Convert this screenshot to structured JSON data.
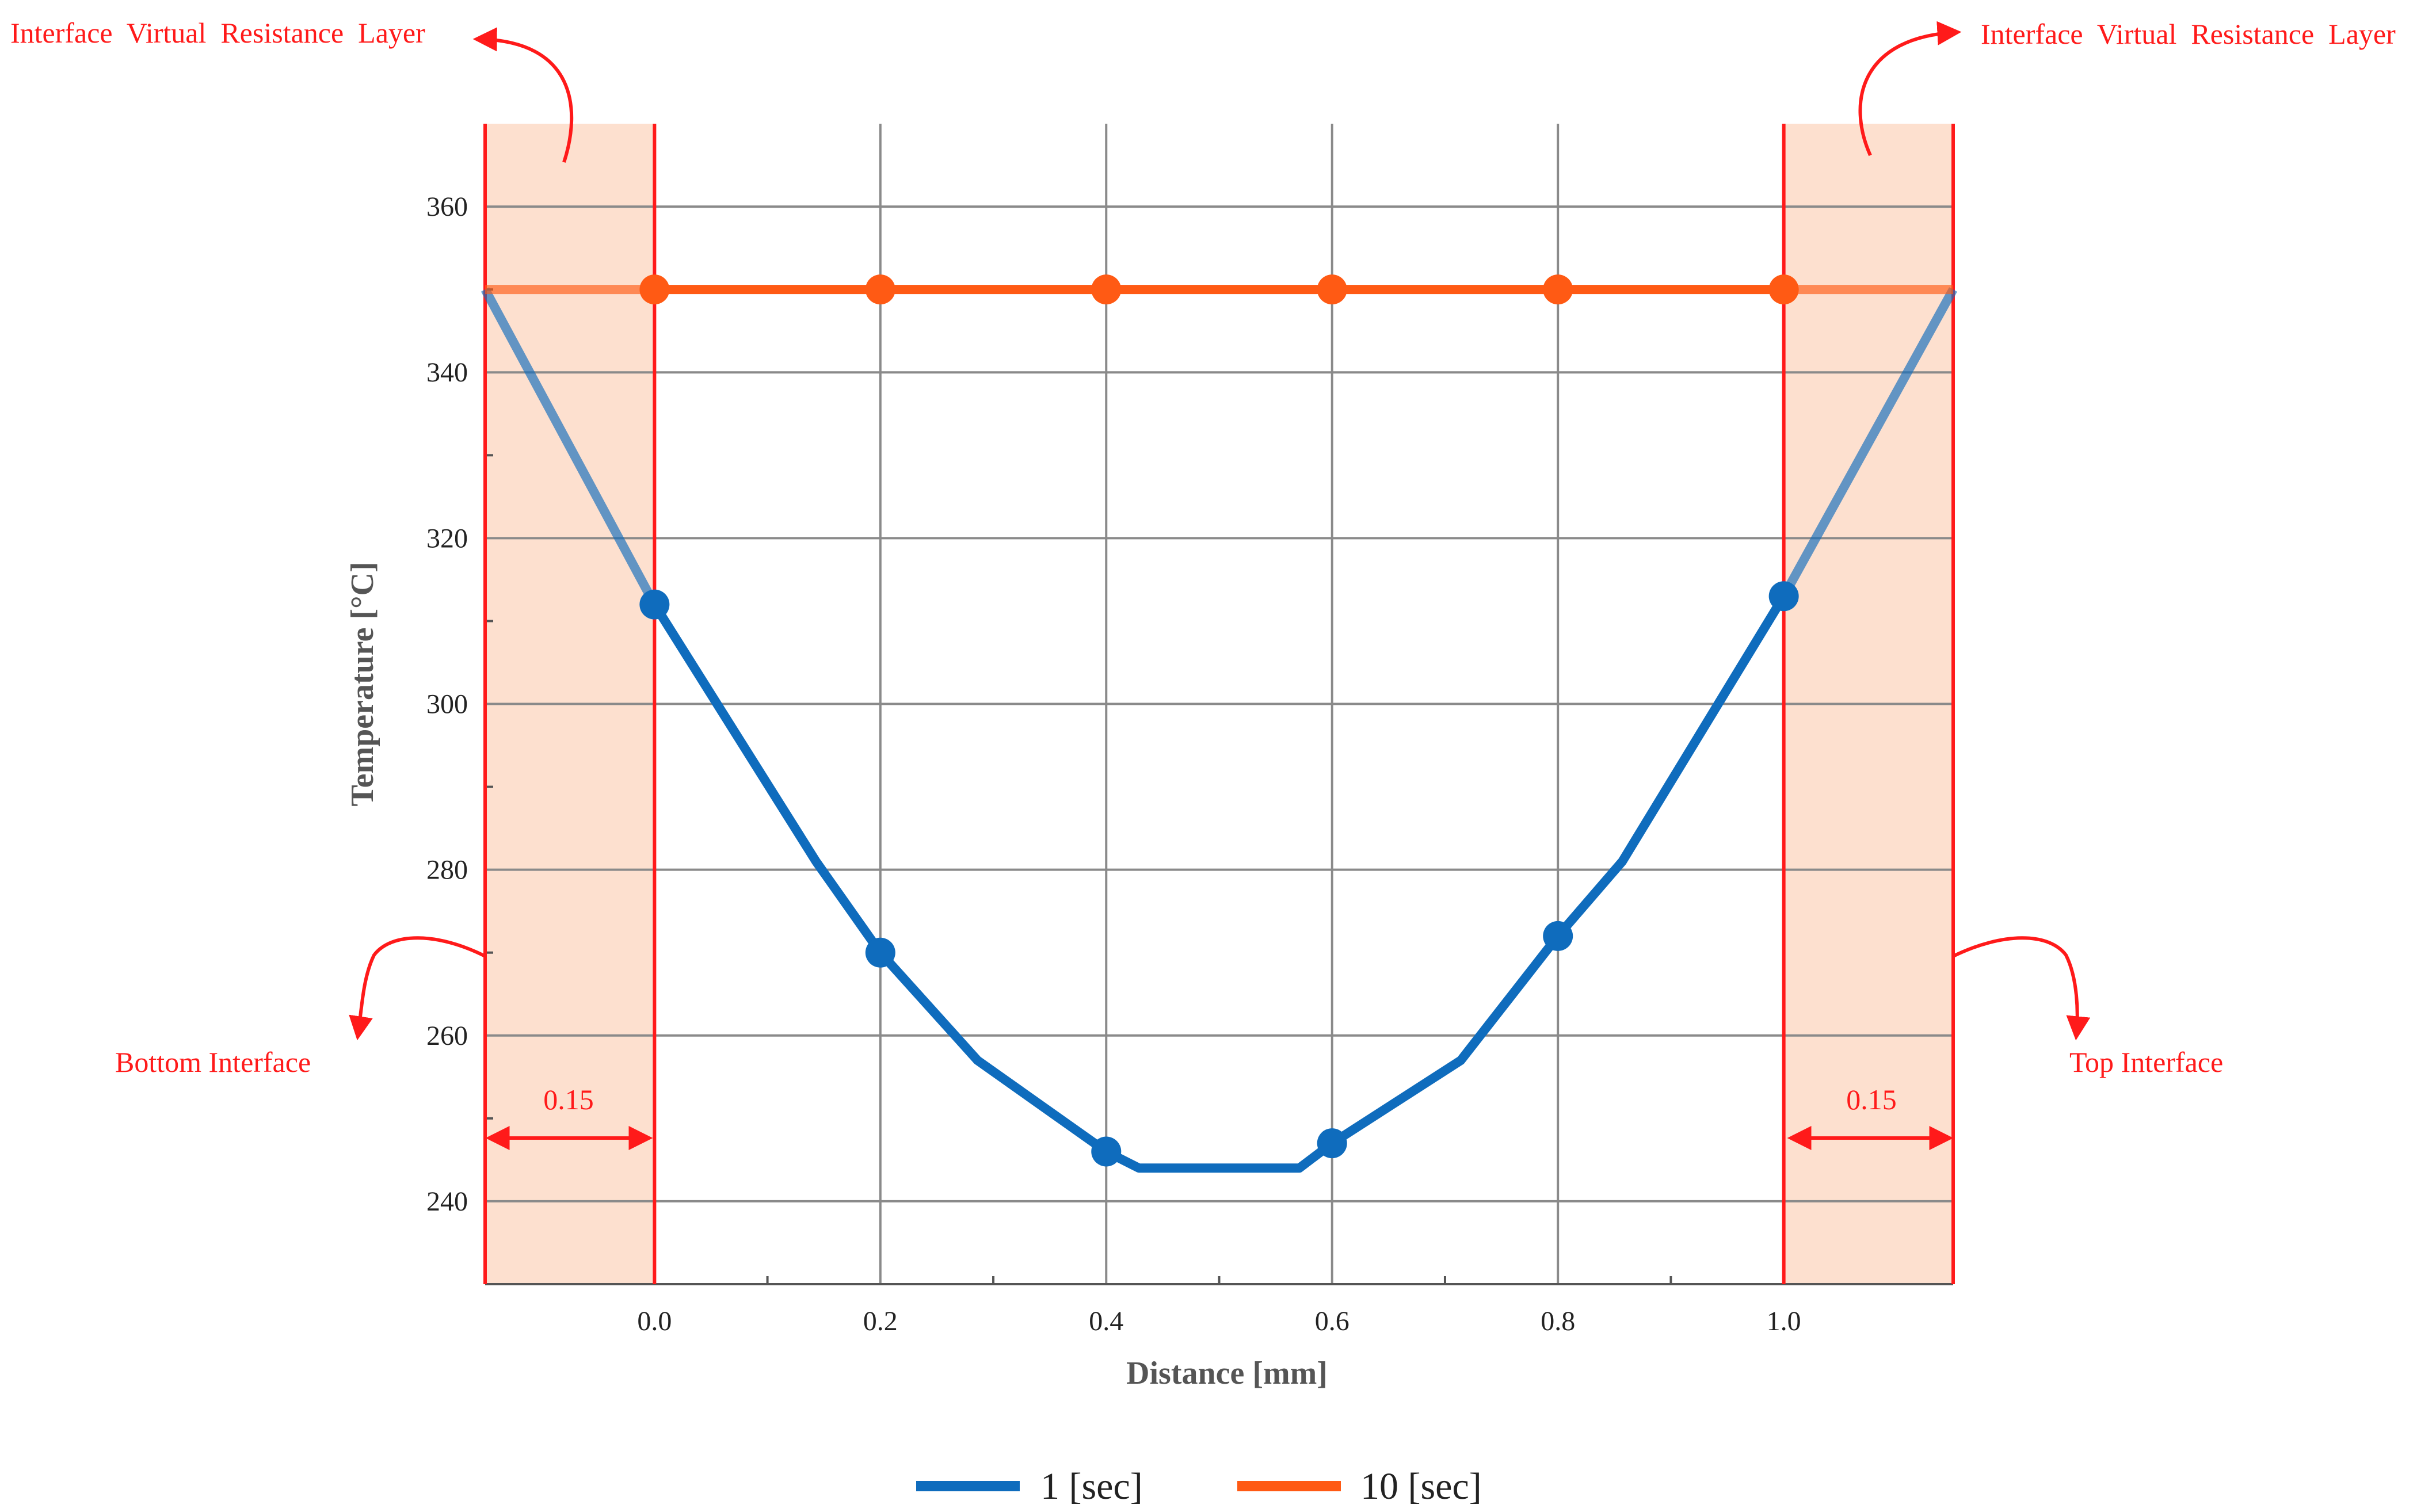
{
  "chart_data": {
    "type": "line",
    "xlabel": "Distance [mm]",
    "ylabel": "Temperature [°C]",
    "xlim": [
      -0.15,
      1.15
    ],
    "ylim": [
      230,
      370
    ],
    "x_ticks": [
      0.0,
      0.2,
      0.4,
      0.6,
      0.8,
      1.0
    ],
    "x_tick_labels": [
      "0.0",
      "0.2",
      "0.4",
      "0.6",
      "0.8",
      "1.0"
    ],
    "y_ticks": [
      240,
      260,
      280,
      300,
      320,
      340,
      360
    ],
    "y_tick_labels": [
      "240",
      "260",
      "280",
      "300",
      "320",
      "340",
      "360"
    ],
    "grid": true,
    "legend_position": "bottom-center",
    "series": [
      {
        "name": "1 [sec]",
        "color": "#0f6cbd",
        "x": [
          -0.15,
          0.0,
          0.143,
          0.2,
          0.286,
          0.4,
          0.429,
          0.571,
          0.6,
          0.714,
          0.8,
          0.857,
          1.0,
          1.15
        ],
        "y": [
          350,
          312,
          281,
          270,
          257,
          246,
          244,
          244,
          247,
          257,
          272,
          281,
          313,
          350
        ],
        "marker_x": [
          0.0,
          0.2,
          0.4,
          0.6,
          0.8,
          1.0
        ],
        "marker_y": [
          312,
          270,
          246,
          247,
          272,
          313
        ]
      },
      {
        "name": "10 [sec]",
        "color": "#ff5a14",
        "x": [
          -0.15,
          0.0,
          0.2,
          0.4,
          0.6,
          0.8,
          1.0,
          1.15
        ],
        "y": [
          350,
          350,
          350,
          350,
          350,
          350,
          350,
          350
        ],
        "marker_x": [
          0.0,
          0.2,
          0.4,
          0.6,
          0.8,
          1.0
        ],
        "marker_y": [
          350,
          350,
          350,
          350,
          350,
          350
        ]
      }
    ],
    "regions": [
      {
        "label": "Bottom Interface",
        "x_range": [
          -0.15,
          0.0
        ],
        "width_label": "0.15",
        "color": "#fde0cf"
      },
      {
        "label": "Top Interface",
        "x_range": [
          1.0,
          1.15
        ],
        "width_label": "0.15",
        "color": "#fde0cf"
      }
    ],
    "annotations": {
      "layer_left": "Interface  Virtual  Resistance  Layer",
      "layer_right": "Interface  Virtual  Resistance  Layer",
      "bottom_interface": "Bottom Interface",
      "top_interface": "Top Interface",
      "width_left": "0.15",
      "width_right": "0.15"
    },
    "accent_color": "#ff1a1a"
  }
}
